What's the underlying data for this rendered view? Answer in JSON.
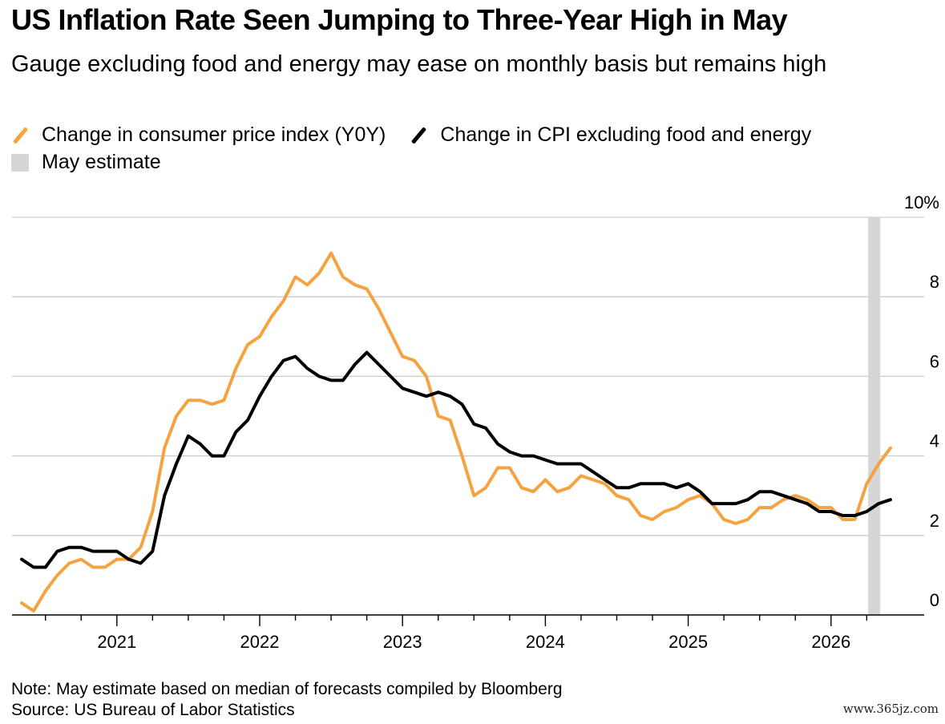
{
  "title": "US Inflation Rate Seen Jumping to Three-Year High in May",
  "subtitle": "Gauge excluding food and energy may ease on monthly basis but remains high",
  "legend": {
    "cpi": "Change in consumer price index (Y0Y)",
    "core": "Change in CPI excluding food and energy",
    "estimate": "May estimate"
  },
  "colors": {
    "cpi": "#f5a340",
    "core": "#000000",
    "estimate": "#d6d6d6",
    "grid": "#cccccc"
  },
  "note": "Note: May estimate based on median of forecasts compiled by Bloomberg",
  "source": "Source: US Bureau of Labor Statistics",
  "watermark": "www.365jz.com",
  "chart_data": {
    "type": "line",
    "x_start": "2020-05",
    "x_end": "2026-05",
    "ylim": [
      0,
      10
    ],
    "y_ticks": [
      0,
      2,
      4,
      6,
      8,
      10
    ],
    "y_tick_labels": [
      "0",
      "2",
      "4",
      "6",
      "8",
      "10%"
    ],
    "x_tick_labels": [
      "2021",
      "2022",
      "2023",
      "2024",
      "2025",
      "2026"
    ],
    "highlight_period": {
      "label": "May estimate",
      "x": "2026-05"
    },
    "series": [
      {
        "name": "Change in consumer price index (Y0Y)",
        "key": "cpi",
        "values": [
          0.3,
          0.1,
          0.6,
          1.0,
          1.3,
          1.4,
          1.2,
          1.2,
          1.4,
          1.4,
          1.7,
          2.6,
          4.2,
          5.0,
          5.4,
          5.4,
          5.3,
          5.4,
          6.2,
          6.8,
          7.0,
          7.5,
          7.9,
          8.5,
          8.3,
          8.6,
          9.1,
          8.5,
          8.3,
          8.2,
          7.7,
          7.1,
          6.5,
          6.4,
          6.0,
          5.0,
          4.9,
          4.0,
          3.0,
          3.2,
          3.7,
          3.7,
          3.2,
          3.1,
          3.4,
          3.1,
          3.2,
          3.5,
          3.4,
          3.3,
          3.0,
          2.9,
          2.5,
          2.4,
          2.6,
          2.7,
          2.9,
          3.0,
          2.8,
          2.4,
          2.3,
          2.4,
          2.7,
          2.7,
          2.9,
          3.0,
          2.9,
          2.7,
          2.7,
          2.4,
          2.4,
          3.3,
          3.8,
          4.2
        ],
        "values_note": ""
      },
      {
        "name": "Change in CPI excluding food and energy",
        "key": "core",
        "values": [
          1.4,
          1.2,
          1.2,
          1.6,
          1.7,
          1.7,
          1.6,
          1.6,
          1.6,
          1.4,
          1.3,
          1.6,
          3.0,
          3.8,
          4.5,
          4.3,
          4.0,
          4.0,
          4.6,
          4.9,
          5.5,
          6.0,
          6.4,
          6.5,
          6.2,
          6.0,
          5.9,
          5.9,
          6.3,
          6.6,
          6.3,
          6.0,
          5.7,
          5.6,
          5.5,
          5.6,
          5.5,
          5.3,
          4.8,
          4.7,
          4.3,
          4.1,
          4.0,
          4.0,
          3.9,
          3.8,
          3.8,
          3.8,
          3.6,
          3.4,
          3.2,
          3.2,
          3.3,
          3.3,
          3.3,
          3.2,
          3.3,
          3.1,
          2.8,
          2.8,
          2.8,
          2.9,
          3.1,
          3.1,
          3.0,
          2.9,
          2.8,
          2.6,
          2.6,
          2.5,
          2.5,
          2.6,
          2.8,
          2.9
        ]
      }
    ]
  }
}
